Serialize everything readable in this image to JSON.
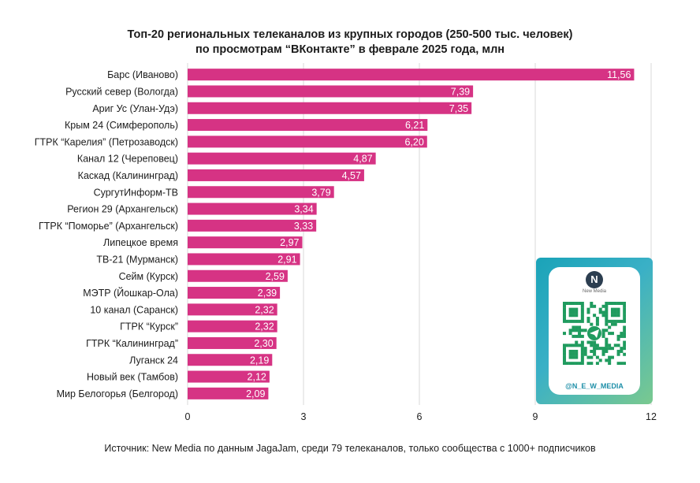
{
  "chart_data": {
    "type": "bar",
    "orientation": "horizontal",
    "title": "Топ-20 региональных телеканалов из крупных городов (250-500 тыс. человек)",
    "subtitle": "по просмотрам “ВКонтакте” в феврале 2025 года, млн",
    "categories": [
      "Барс (Иваново)",
      "Русский север (Вологда)",
      "Ариг Ус (Улан-Удэ)",
      "Крым 24 (Симферополь)",
      "ГТРК “Карелия” (Петрозаводск)",
      "Канал 12 (Череповец)",
      "Каскад (Калининград)",
      "СургутИнформ-ТВ",
      "Регион 29 (Архангельск)",
      "ГТРК “Поморье” (Архангельск)",
      "Липецкое время",
      "ТВ-21 (Мурманск)",
      "Сейм (Курск)",
      "МЭТР (Йошкар-Ола)",
      "10 канал (Саранск)",
      "ГТРК “Курск”",
      "ГТРК “Калининград”",
      "Луганск 24",
      "Новый век (Тамбов)",
      "Мир Белогорья (Белгород)"
    ],
    "values": [
      11.56,
      7.39,
      7.35,
      6.21,
      6.2,
      4.87,
      4.57,
      3.79,
      3.34,
      3.33,
      2.97,
      2.91,
      2.59,
      2.39,
      2.32,
      2.32,
      2.3,
      2.19,
      2.12,
      2.09
    ],
    "value_labels": [
      "11,56",
      "7,39",
      "7,35",
      "6,21",
      "6,20",
      "4,87",
      "4,57",
      "3,79",
      "3,34",
      "3,33",
      "2,97",
      "2,91",
      "2,59",
      "2,39",
      "2,32",
      "2,32",
      "2,30",
      "2,19",
      "2,12",
      "2,09"
    ],
    "xlim": [
      0,
      12
    ],
    "xticks": [
      0,
      3,
      6,
      9,
      12
    ],
    "grid": "vertical",
    "bar_color": "#d63384"
  },
  "source": "Источник: New Media по данным JagaJam, среди 79 телеканалов, только сообщества с 1000+ подписчиков",
  "promo": {
    "logo_letter": "N",
    "logo_text": "New Media",
    "handle": "@N_E_W_MEDIA",
    "qr_icon": "qr-code-icon"
  }
}
